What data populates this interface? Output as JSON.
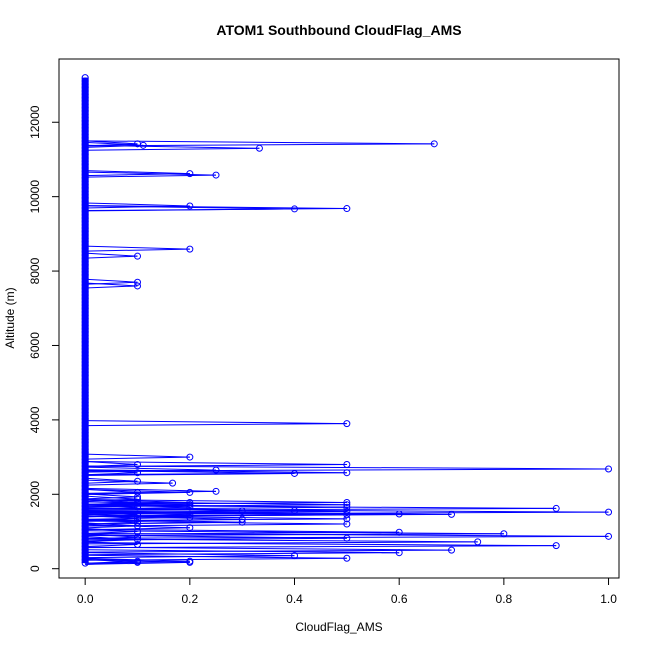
{
  "chart_data": {
    "type": "line",
    "title": "ATOM1 Southbound CloudFlag_AMS",
    "xlabel": "CloudFlag_AMS",
    "ylabel": "Altitude (m)",
    "xlim": [
      -0.05,
      1.02
    ],
    "ylim": [
      -250,
      13700
    ],
    "xticks": [
      0,
      0.2,
      0.4,
      0.6,
      0.8,
      1
    ],
    "xtick_labels": [
      "0.0",
      "0.2",
      "0.4",
      "0.6",
      "0.8",
      "1.0"
    ],
    "yticks": [
      0,
      2000,
      4000,
      6000,
      8000,
      10000,
      12000
    ],
    "ytick_labels": [
      "0",
      "2000",
      "4000",
      "6000",
      "8000",
      "10000",
      "12000"
    ],
    "series_color": "#0000ff",
    "zero_range": [
      150,
      13200
    ],
    "excursions": [
      {
        "x": 0.1,
        "y": 11420
      },
      {
        "x": 0.111,
        "y": 11380
      },
      {
        "x": 0.667,
        "y": 11420
      },
      {
        "x": 0.333,
        "y": 11300
      },
      {
        "x": 0.2,
        "y": 10620
      },
      {
        "x": 0.25,
        "y": 10580
      },
      {
        "x": 0.2,
        "y": 9750
      },
      {
        "x": 0.4,
        "y": 9670
      },
      {
        "x": 0.5,
        "y": 9680
      },
      {
        "x": 0.2,
        "y": 8590
      },
      {
        "x": 0.1,
        "y": 8400
      },
      {
        "x": 0.1,
        "y": 7700
      },
      {
        "x": 0.1,
        "y": 7600
      },
      {
        "x": 0.5,
        "y": 3900
      },
      {
        "x": 0.2,
        "y": 3000
      },
      {
        "x": 0.1,
        "y": 2800
      },
      {
        "x": 0.5,
        "y": 2800
      },
      {
        "x": 0.25,
        "y": 2650
      },
      {
        "x": 0.1,
        "y": 2580
      },
      {
        "x": 0.4,
        "y": 2560
      },
      {
        "x": 0.5,
        "y": 2580
      },
      {
        "x": 1.0,
        "y": 2680
      },
      {
        "x": 0.1,
        "y": 2350
      },
      {
        "x": 0.167,
        "y": 2300
      },
      {
        "x": 0.1,
        "y": 2050
      },
      {
        "x": 0.2,
        "y": 2050
      },
      {
        "x": 0.25,
        "y": 2080
      },
      {
        "x": 0.1,
        "y": 1930
      },
      {
        "x": 0.1,
        "y": 1870
      },
      {
        "x": 0.1,
        "y": 1780
      },
      {
        "x": 0.2,
        "y": 1780
      },
      {
        "x": 0.5,
        "y": 1780
      },
      {
        "x": 0.2,
        "y": 1720
      },
      {
        "x": 0.5,
        "y": 1720
      },
      {
        "x": 0.1,
        "y": 1650
      },
      {
        "x": 0.2,
        "y": 1650
      },
      {
        "x": 0.5,
        "y": 1650
      },
      {
        "x": 0.9,
        "y": 1620
      },
      {
        "x": 0.3,
        "y": 1550
      },
      {
        "x": 0.4,
        "y": 1560
      },
      {
        "x": 0.5,
        "y": 1540
      },
      {
        "x": 1.0,
        "y": 1520
      },
      {
        "x": 0.1,
        "y": 1450
      },
      {
        "x": 0.2,
        "y": 1450
      },
      {
        "x": 0.5,
        "y": 1450
      },
      {
        "x": 0.6,
        "y": 1470
      },
      {
        "x": 0.7,
        "y": 1460
      },
      {
        "x": 0.1,
        "y": 1350
      },
      {
        "x": 0.2,
        "y": 1380
      },
      {
        "x": 0.3,
        "y": 1330
      },
      {
        "x": 0.5,
        "y": 1340
      },
      {
        "x": 0.1,
        "y": 1250
      },
      {
        "x": 0.3,
        "y": 1250
      },
      {
        "x": 0.5,
        "y": 1200
      },
      {
        "x": 0.1,
        "y": 1150
      },
      {
        "x": 0.2,
        "y": 1100
      },
      {
        "x": 0.1,
        "y": 1000
      },
      {
        "x": 0.6,
        "y": 980
      },
      {
        "x": 0.8,
        "y": 940
      },
      {
        "x": 0.1,
        "y": 850
      },
      {
        "x": 0.5,
        "y": 820
      },
      {
        "x": 1.0,
        "y": 870
      },
      {
        "x": 0.1,
        "y": 780
      },
      {
        "x": 0.75,
        "y": 720
      },
      {
        "x": 0.1,
        "y": 650
      },
      {
        "x": 0.9,
        "y": 620
      },
      {
        "x": 0.7,
        "y": 500
      },
      {
        "x": 0.6,
        "y": 430
      },
      {
        "x": 0.4,
        "y": 350
      },
      {
        "x": 0.5,
        "y": 280
      },
      {
        "x": 0.1,
        "y": 200
      },
      {
        "x": 0.2,
        "y": 200
      },
      {
        "x": 0.1,
        "y": 170
      },
      {
        "x": 0.2,
        "y": 170
      }
    ]
  }
}
